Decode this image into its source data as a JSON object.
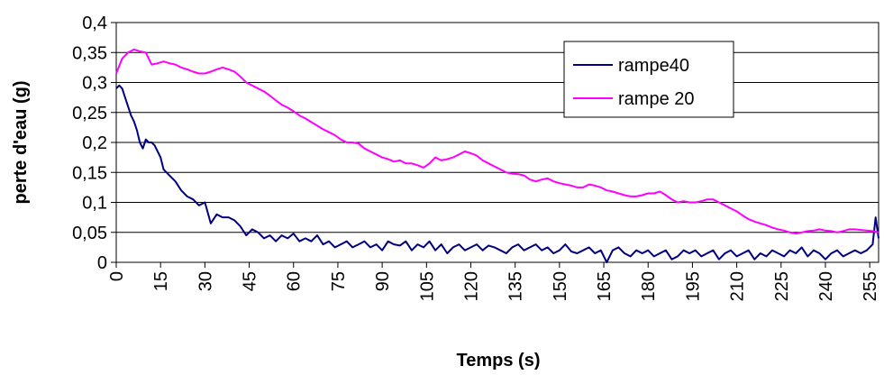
{
  "chart_data": {
    "type": "line",
    "title": "",
    "xlabel": "Temps (s)",
    "ylabel": "perte d'eau (g)",
    "xlim": [
      0,
      258
    ],
    "ylim": [
      0,
      0.4
    ],
    "x_ticks": [
      "0",
      "15",
      "30",
      "45",
      "60",
      "75",
      "90",
      "105",
      "120",
      "135",
      "150",
      "165",
      "180",
      "195",
      "210",
      "225",
      "240",
      "255"
    ],
    "y_ticks": [
      "0",
      "0,05",
      "0,1",
      "0,15",
      "0,2",
      "0,25",
      "0,3",
      "0,35",
      "0,4"
    ],
    "grid": "horizontal",
    "legend_position": "top-right",
    "series": [
      {
        "name": "rampe40",
        "color": "#000080",
        "x": [
          0,
          1,
          2,
          3,
          4,
          5,
          6,
          7,
          8,
          9,
          10,
          11,
          12,
          13,
          14,
          15,
          16,
          18,
          20,
          22,
          24,
          26,
          28,
          30,
          32,
          34,
          36,
          38,
          40,
          42,
          44,
          46,
          48,
          50,
          52,
          54,
          56,
          58,
          60,
          62,
          64,
          66,
          68,
          70,
          72,
          74,
          76,
          78,
          80,
          82,
          84,
          86,
          88,
          90,
          92,
          94,
          96,
          98,
          100,
          102,
          104,
          106,
          108,
          110,
          112,
          114,
          116,
          118,
          120,
          122,
          124,
          126,
          128,
          130,
          132,
          134,
          136,
          138,
          140,
          142,
          144,
          146,
          148,
          150,
          152,
          154,
          156,
          158,
          160,
          162,
          164,
          166,
          168,
          170,
          172,
          174,
          176,
          178,
          180,
          182,
          184,
          186,
          188,
          190,
          192,
          194,
          196,
          198,
          200,
          202,
          204,
          206,
          208,
          210,
          212,
          214,
          216,
          218,
          220,
          222,
          224,
          226,
          228,
          230,
          232,
          234,
          236,
          238,
          240,
          242,
          244,
          246,
          248,
          250,
          252,
          254,
          256,
          257,
          258
        ],
        "y": [
          0.29,
          0.295,
          0.29,
          0.275,
          0.26,
          0.245,
          0.235,
          0.22,
          0.2,
          0.19,
          0.205,
          0.2,
          0.2,
          0.195,
          0.185,
          0.175,
          0.155,
          0.145,
          0.135,
          0.12,
          0.11,
          0.105,
          0.095,
          0.1,
          0.065,
          0.08,
          0.075,
          0.075,
          0.07,
          0.06,
          0.045,
          0.055,
          0.05,
          0.04,
          0.045,
          0.035,
          0.045,
          0.04,
          0.048,
          0.035,
          0.04,
          0.035,
          0.045,
          0.03,
          0.035,
          0.025,
          0.03,
          0.035,
          0.025,
          0.03,
          0.035,
          0.025,
          0.03,
          0.02,
          0.035,
          0.03,
          0.028,
          0.035,
          0.02,
          0.03,
          0.025,
          0.035,
          0.02,
          0.03,
          0.015,
          0.025,
          0.03,
          0.02,
          0.025,
          0.03,
          0.02,
          0.028,
          0.025,
          0.02,
          0.015,
          0.025,
          0.03,
          0.02,
          0.025,
          0.03,
          0.02,
          0.025,
          0.015,
          0.02,
          0.03,
          0.018,
          0.015,
          0.02,
          0.025,
          0.015,
          0.02,
          0.0,
          0.02,
          0.025,
          0.015,
          0.01,
          0.02,
          0.015,
          0.02,
          0.01,
          0.015,
          0.02,
          0.005,
          0.01,
          0.02,
          0.015,
          0.02,
          0.01,
          0.015,
          0.02,
          0.005,
          0.015,
          0.02,
          0.01,
          0.015,
          0.02,
          0.005,
          0.015,
          0.01,
          0.02,
          0.015,
          0.01,
          0.02,
          0.015,
          0.025,
          0.01,
          0.02,
          0.015,
          0.005,
          0.015,
          0.02,
          0.01,
          0.015,
          0.02,
          0.015,
          0.02,
          0.03,
          0.075,
          0.04
        ]
      },
      {
        "name": "rampe 20",
        "color": "#FF00FF",
        "x": [
          0,
          2,
          4,
          6,
          8,
          10,
          12,
          14,
          16,
          18,
          20,
          22,
          24,
          26,
          28,
          30,
          32,
          34,
          36,
          38,
          40,
          42,
          44,
          46,
          48,
          50,
          52,
          54,
          56,
          58,
          60,
          62,
          64,
          66,
          68,
          70,
          72,
          74,
          76,
          78,
          80,
          82,
          84,
          86,
          88,
          90,
          92,
          94,
          96,
          98,
          100,
          102,
          104,
          106,
          108,
          110,
          112,
          114,
          116,
          118,
          120,
          122,
          124,
          126,
          128,
          130,
          132,
          134,
          136,
          138,
          140,
          142,
          144,
          146,
          148,
          150,
          152,
          154,
          156,
          158,
          160,
          162,
          164,
          166,
          168,
          170,
          172,
          174,
          176,
          178,
          180,
          182,
          184,
          186,
          188,
          190,
          192,
          194,
          196,
          198,
          200,
          202,
          204,
          206,
          208,
          210,
          212,
          214,
          216,
          218,
          220,
          222,
          224,
          226,
          228,
          230,
          232,
          234,
          236,
          238,
          240,
          242,
          244,
          246,
          248,
          250,
          252,
          254,
          256,
          258
        ],
        "y": [
          0.315,
          0.34,
          0.35,
          0.355,
          0.352,
          0.35,
          0.33,
          0.332,
          0.335,
          0.332,
          0.33,
          0.325,
          0.322,
          0.318,
          0.315,
          0.315,
          0.318,
          0.322,
          0.325,
          0.322,
          0.318,
          0.31,
          0.3,
          0.295,
          0.29,
          0.285,
          0.278,
          0.27,
          0.263,
          0.258,
          0.252,
          0.245,
          0.24,
          0.234,
          0.228,
          0.222,
          0.217,
          0.212,
          0.205,
          0.2,
          0.2,
          0.198,
          0.19,
          0.185,
          0.18,
          0.175,
          0.172,
          0.168,
          0.17,
          0.165,
          0.165,
          0.162,
          0.158,
          0.165,
          0.175,
          0.17,
          0.172,
          0.175,
          0.18,
          0.185,
          0.182,
          0.178,
          0.17,
          0.165,
          0.16,
          0.155,
          0.15,
          0.148,
          0.147,
          0.145,
          0.138,
          0.135,
          0.138,
          0.14,
          0.135,
          0.132,
          0.13,
          0.128,
          0.125,
          0.125,
          0.13,
          0.128,
          0.125,
          0.12,
          0.118,
          0.115,
          0.112,
          0.11,
          0.11,
          0.112,
          0.115,
          0.115,
          0.118,
          0.112,
          0.105,
          0.1,
          0.102,
          0.1,
          0.1,
          0.102,
          0.105,
          0.105,
          0.1,
          0.095,
          0.09,
          0.085,
          0.078,
          0.072,
          0.068,
          0.065,
          0.062,
          0.058,
          0.055,
          0.053,
          0.05,
          0.048,
          0.05,
          0.052,
          0.053,
          0.055,
          0.053,
          0.052,
          0.05,
          0.052,
          0.055,
          0.055,
          0.054,
          0.053,
          0.052,
          0.05
        ]
      }
    ]
  }
}
